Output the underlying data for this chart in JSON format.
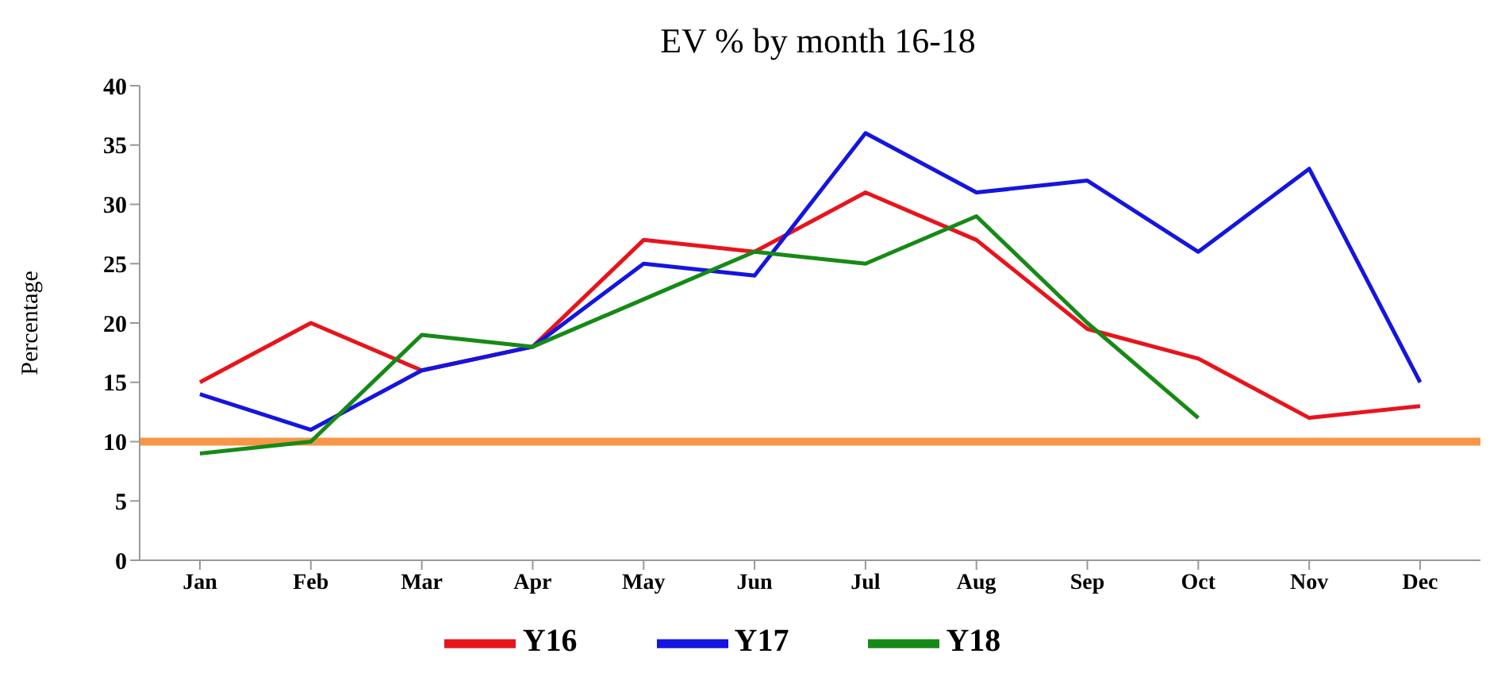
{
  "chart_data": {
    "type": "line",
    "title": "EV % by month 16-18",
    "ylabel": "Percentage",
    "categories": [
      "Jan",
      "Feb",
      "Mar",
      "Apr",
      "May",
      "Jun",
      "Jul",
      "Aug",
      "Sep",
      "Oct",
      "Nov",
      "Dec"
    ],
    "series": [
      {
        "name": "Y16",
        "color": "#e8141c",
        "values": [
          15,
          20,
          16,
          18,
          27,
          26,
          31,
          27,
          19.5,
          17,
          12,
          13
        ]
      },
      {
        "name": "Y17",
        "color": "#1515e0",
        "values": [
          14,
          11,
          16,
          18,
          25,
          24,
          36,
          31,
          32,
          26,
          33,
          15
        ]
      },
      {
        "name": "Y18",
        "color": "#168a16",
        "values": [
          9,
          10,
          19,
          18,
          22,
          26,
          25,
          29,
          20,
          12,
          null,
          null
        ]
      }
    ],
    "ylim": [
      0,
      40
    ],
    "yticks": [
      0,
      5,
      10,
      15,
      20,
      25,
      30,
      35,
      40
    ],
    "ref_lines": [
      {
        "axis": "y",
        "value": 10,
        "color": "#f79646"
      }
    ],
    "grid": false,
    "legend": "bottom",
    "marker": "none",
    "line_style": "solid"
  }
}
